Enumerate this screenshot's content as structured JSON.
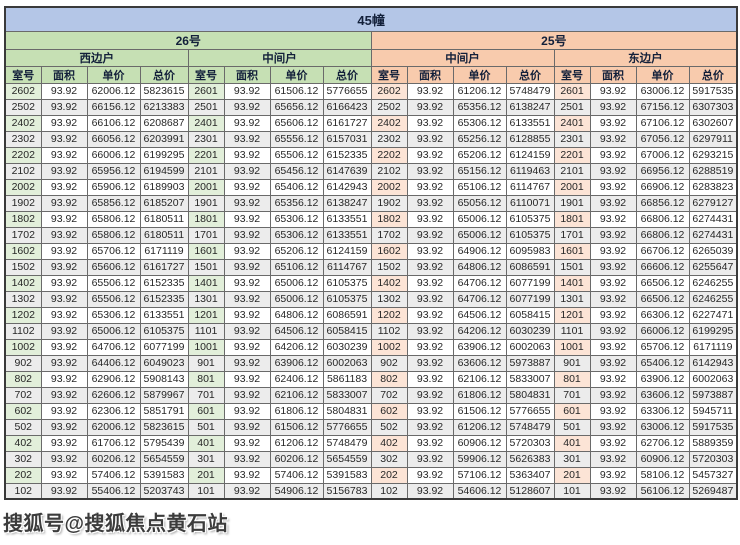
{
  "watermark": "搜狐号@搜狐焦点黄石站",
  "colors": {
    "title_bg": "#b4c6e7",
    "green_header": "#c6e0b4",
    "green_cell": "#e2efda",
    "peach_header": "#f8cbad",
    "peach_cell": "#fce4d6",
    "alt_row": "#ececec",
    "grid_border": "#6a6a6a"
  },
  "chart_data": {
    "type": "table",
    "title": "45幢",
    "buildings": [
      "26号",
      "25号"
    ],
    "units": [
      "西边户",
      "中间户",
      "中间户",
      "东边户"
    ],
    "columns": [
      "室号",
      "面积",
      "单价",
      "总价"
    ],
    "rows": [
      [
        [
          "2602",
          "93.92",
          "62006.12",
          "5823615"
        ],
        [
          "2601",
          "93.92",
          "61506.12",
          "5776655"
        ],
        [
          "2602",
          "93.92",
          "61206.12",
          "5748479"
        ],
        [
          "2601",
          "93.92",
          "63006.12",
          "5917535"
        ]
      ],
      [
        [
          "2502",
          "93.92",
          "66156.12",
          "6213383"
        ],
        [
          "2501",
          "93.92",
          "65656.12",
          "6166423"
        ],
        [
          "2502",
          "93.92",
          "65356.12",
          "6138247"
        ],
        [
          "2501",
          "93.92",
          "67156.12",
          "6307303"
        ]
      ],
      [
        [
          "2402",
          "93.92",
          "66106.12",
          "6208687"
        ],
        [
          "2401",
          "93.92",
          "65606.12",
          "6161727"
        ],
        [
          "2402",
          "93.92",
          "65306.12",
          "6133551"
        ],
        [
          "2401",
          "93.92",
          "67106.12",
          "6302607"
        ]
      ],
      [
        [
          "2302",
          "93.92",
          "66056.12",
          "6203991"
        ],
        [
          "2301",
          "93.92",
          "65556.12",
          "6157031"
        ],
        [
          "2302",
          "93.92",
          "65256.12",
          "6128855"
        ],
        [
          "2301",
          "93.92",
          "67056.12",
          "6297911"
        ]
      ],
      [
        [
          "2202",
          "93.92",
          "66006.12",
          "6199295"
        ],
        [
          "2201",
          "93.92",
          "65506.12",
          "6152335"
        ],
        [
          "2202",
          "93.92",
          "65206.12",
          "6124159"
        ],
        [
          "2201",
          "93.92",
          "67006.12",
          "6293215"
        ]
      ],
      [
        [
          "2102",
          "93.92",
          "65956.12",
          "6194599"
        ],
        [
          "2101",
          "93.92",
          "65456.12",
          "6147639"
        ],
        [
          "2102",
          "93.92",
          "65156.12",
          "6119463"
        ],
        [
          "2101",
          "93.92",
          "66956.12",
          "6288519"
        ]
      ],
      [
        [
          "2002",
          "93.92",
          "65906.12",
          "6189903"
        ],
        [
          "2001",
          "93.92",
          "65406.12",
          "6142943"
        ],
        [
          "2002",
          "93.92",
          "65106.12",
          "6114767"
        ],
        [
          "2001",
          "93.92",
          "66906.12",
          "6283823"
        ]
      ],
      [
        [
          "1902",
          "93.92",
          "65856.12",
          "6185207"
        ],
        [
          "1901",
          "93.92",
          "65356.12",
          "6138247"
        ],
        [
          "1902",
          "93.92",
          "65056.12",
          "6110071"
        ],
        [
          "1901",
          "93.92",
          "66856.12",
          "6279127"
        ]
      ],
      [
        [
          "1802",
          "93.92",
          "65806.12",
          "6180511"
        ],
        [
          "1801",
          "93.92",
          "65306.12",
          "6133551"
        ],
        [
          "1802",
          "93.92",
          "65006.12",
          "6105375"
        ],
        [
          "1801",
          "93.92",
          "66806.12",
          "6274431"
        ]
      ],
      [
        [
          "1702",
          "93.92",
          "65806.12",
          "6180511"
        ],
        [
          "1701",
          "93.92",
          "65306.12",
          "6133551"
        ],
        [
          "1702",
          "93.92",
          "65006.12",
          "6105375"
        ],
        [
          "1701",
          "93.92",
          "66806.12",
          "6274431"
        ]
      ],
      [
        [
          "1602",
          "93.92",
          "65706.12",
          "6171119"
        ],
        [
          "1601",
          "93.92",
          "65206.12",
          "6124159"
        ],
        [
          "1602",
          "93.92",
          "64906.12",
          "6095983"
        ],
        [
          "1601",
          "93.92",
          "66706.12",
          "6265039"
        ]
      ],
      [
        [
          "1502",
          "93.92",
          "65606.12",
          "6161727"
        ],
        [
          "1501",
          "93.92",
          "65106.12",
          "6114767"
        ],
        [
          "1502",
          "93.92",
          "64806.12",
          "6086591"
        ],
        [
          "1501",
          "93.92",
          "66606.12",
          "6255647"
        ]
      ],
      [
        [
          "1402",
          "93.92",
          "65506.12",
          "6152335"
        ],
        [
          "1401",
          "93.92",
          "65006.12",
          "6105375"
        ],
        [
          "1402",
          "93.92",
          "64706.12",
          "6077199"
        ],
        [
          "1401",
          "93.92",
          "66506.12",
          "6246255"
        ]
      ],
      [
        [
          "1302",
          "93.92",
          "65506.12",
          "6152335"
        ],
        [
          "1301",
          "93.92",
          "65006.12",
          "6105375"
        ],
        [
          "1302",
          "93.92",
          "64706.12",
          "6077199"
        ],
        [
          "1301",
          "93.92",
          "66506.12",
          "6246255"
        ]
      ],
      [
        [
          "1202",
          "93.92",
          "65306.12",
          "6133551"
        ],
        [
          "1201",
          "93.92",
          "64806.12",
          "6086591"
        ],
        [
          "1202",
          "93.92",
          "64506.12",
          "6058415"
        ],
        [
          "1201",
          "93.92",
          "66306.12",
          "6227471"
        ]
      ],
      [
        [
          "1102",
          "93.92",
          "65006.12",
          "6105375"
        ],
        [
          "1101",
          "93.92",
          "64506.12",
          "6058415"
        ],
        [
          "1102",
          "93.92",
          "64206.12",
          "6030239"
        ],
        [
          "1101",
          "93.92",
          "66006.12",
          "6199295"
        ]
      ],
      [
        [
          "1002",
          "93.92",
          "64706.12",
          "6077199"
        ],
        [
          "1001",
          "93.92",
          "64206.12",
          "6030239"
        ],
        [
          "1002",
          "93.92",
          "63906.12",
          "6002063"
        ],
        [
          "1001",
          "93.92",
          "65706.12",
          "6171119"
        ]
      ],
      [
        [
          "902",
          "93.92",
          "64406.12",
          "6049023"
        ],
        [
          "901",
          "93.92",
          "63906.12",
          "6002063"
        ],
        [
          "902",
          "93.92",
          "63606.12",
          "5973887"
        ],
        [
          "901",
          "93.92",
          "65406.12",
          "6142943"
        ]
      ],
      [
        [
          "802",
          "93.92",
          "62906.12",
          "5908143"
        ],
        [
          "801",
          "93.92",
          "62406.12",
          "5861183"
        ],
        [
          "802",
          "93.92",
          "62106.12",
          "5833007"
        ],
        [
          "801",
          "93.92",
          "63906.12",
          "6002063"
        ]
      ],
      [
        [
          "702",
          "93.92",
          "62606.12",
          "5879967"
        ],
        [
          "701",
          "93.92",
          "62106.12",
          "5833007"
        ],
        [
          "702",
          "93.92",
          "61806.12",
          "5804831"
        ],
        [
          "701",
          "93.92",
          "63606.12",
          "5973887"
        ]
      ],
      [
        [
          "602",
          "93.92",
          "62306.12",
          "5851791"
        ],
        [
          "601",
          "93.92",
          "61806.12",
          "5804831"
        ],
        [
          "602",
          "93.92",
          "61506.12",
          "5776655"
        ],
        [
          "601",
          "93.92",
          "63306.12",
          "5945711"
        ]
      ],
      [
        [
          "502",
          "93.92",
          "62006.12",
          "5823615"
        ],
        [
          "501",
          "93.92",
          "61506.12",
          "5776655"
        ],
        [
          "502",
          "93.92",
          "61206.12",
          "5748479"
        ],
        [
          "501",
          "93.92",
          "63006.12",
          "5917535"
        ]
      ],
      [
        [
          "402",
          "93.92",
          "61706.12",
          "5795439"
        ],
        [
          "401",
          "93.92",
          "61206.12",
          "5748479"
        ],
        [
          "402",
          "93.92",
          "60906.12",
          "5720303"
        ],
        [
          "401",
          "93.92",
          "62706.12",
          "5889359"
        ]
      ],
      [
        [
          "302",
          "93.92",
          "60206.12",
          "5654559"
        ],
        [
          "301",
          "93.92",
          "60206.12",
          "5654559"
        ],
        [
          "302",
          "93.92",
          "59906.12",
          "5626383"
        ],
        [
          "301",
          "93.92",
          "60906.12",
          "5720303"
        ]
      ],
      [
        [
          "202",
          "93.92",
          "57406.12",
          "5391583"
        ],
        [
          "201",
          "93.92",
          "57406.12",
          "5391583"
        ],
        [
          "202",
          "93.92",
          "57106.12",
          "5363407"
        ],
        [
          "201",
          "93.92",
          "58106.12",
          "5457327"
        ]
      ],
      [
        [
          "102",
          "93.92",
          "55406.12",
          "5203743"
        ],
        [
          "101",
          "93.92",
          "54906.12",
          "5156783"
        ],
        [
          "102",
          "93.92",
          "54606.12",
          "5128607"
        ],
        [
          "101",
          "93.92",
          "56106.12",
          "5269487"
        ]
      ]
    ]
  }
}
